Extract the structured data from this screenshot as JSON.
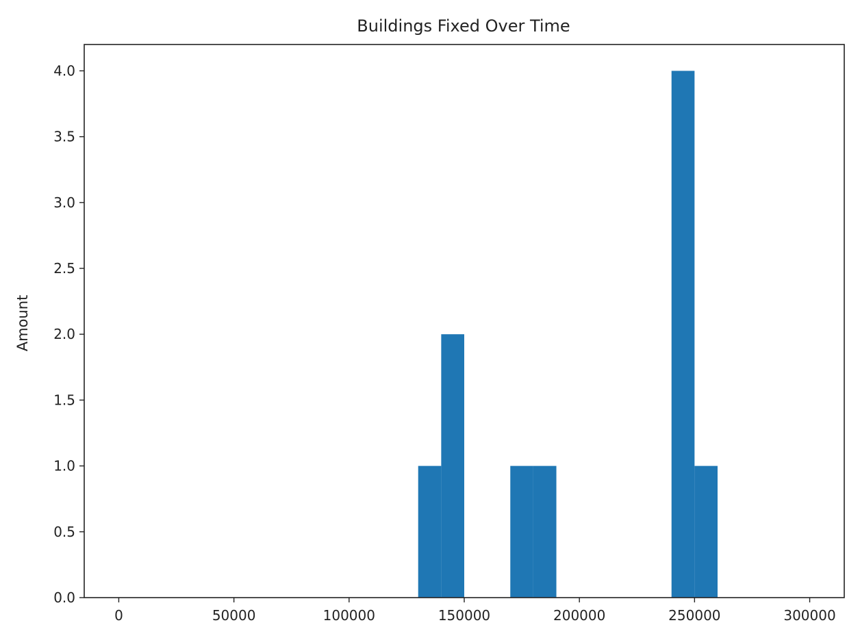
{
  "chart_data": {
    "type": "bar",
    "title": "Buildings Fixed Over Time",
    "xlabel": "",
    "ylabel": "Amount",
    "xlim": [
      -15000,
      315000
    ],
    "ylim": [
      0,
      4.2
    ],
    "grid": false,
    "bar_color": "#1f77b4",
    "bins": [
      {
        "start": 130000,
        "end": 140000,
        "value": 1
      },
      {
        "start": 140000,
        "end": 150000,
        "value": 2
      },
      {
        "start": 170000,
        "end": 180000,
        "value": 1
      },
      {
        "start": 180000,
        "end": 190000,
        "value": 1
      },
      {
        "start": 240000,
        "end": 250000,
        "value": 4
      },
      {
        "start": 250000,
        "end": 260000,
        "value": 1
      }
    ],
    "x_ticks": [
      {
        "value": 0,
        "label": "0"
      },
      {
        "value": 50000,
        "label": "50000"
      },
      {
        "value": 100000,
        "label": "100000"
      },
      {
        "value": 150000,
        "label": "150000"
      },
      {
        "value": 200000,
        "label": "200000"
      },
      {
        "value": 250000,
        "label": "250000"
      },
      {
        "value": 300000,
        "label": "300000"
      }
    ],
    "y_ticks": [
      {
        "value": 0.0,
        "label": "0.0"
      },
      {
        "value": 0.5,
        "label": "0.5"
      },
      {
        "value": 1.0,
        "label": "1.0"
      },
      {
        "value": 1.5,
        "label": "1.5"
      },
      {
        "value": 2.0,
        "label": "2.0"
      },
      {
        "value": 2.5,
        "label": "2.5"
      },
      {
        "value": 3.0,
        "label": "3.0"
      },
      {
        "value": 3.5,
        "label": "3.5"
      },
      {
        "value": 4.0,
        "label": "4.0"
      }
    ]
  }
}
